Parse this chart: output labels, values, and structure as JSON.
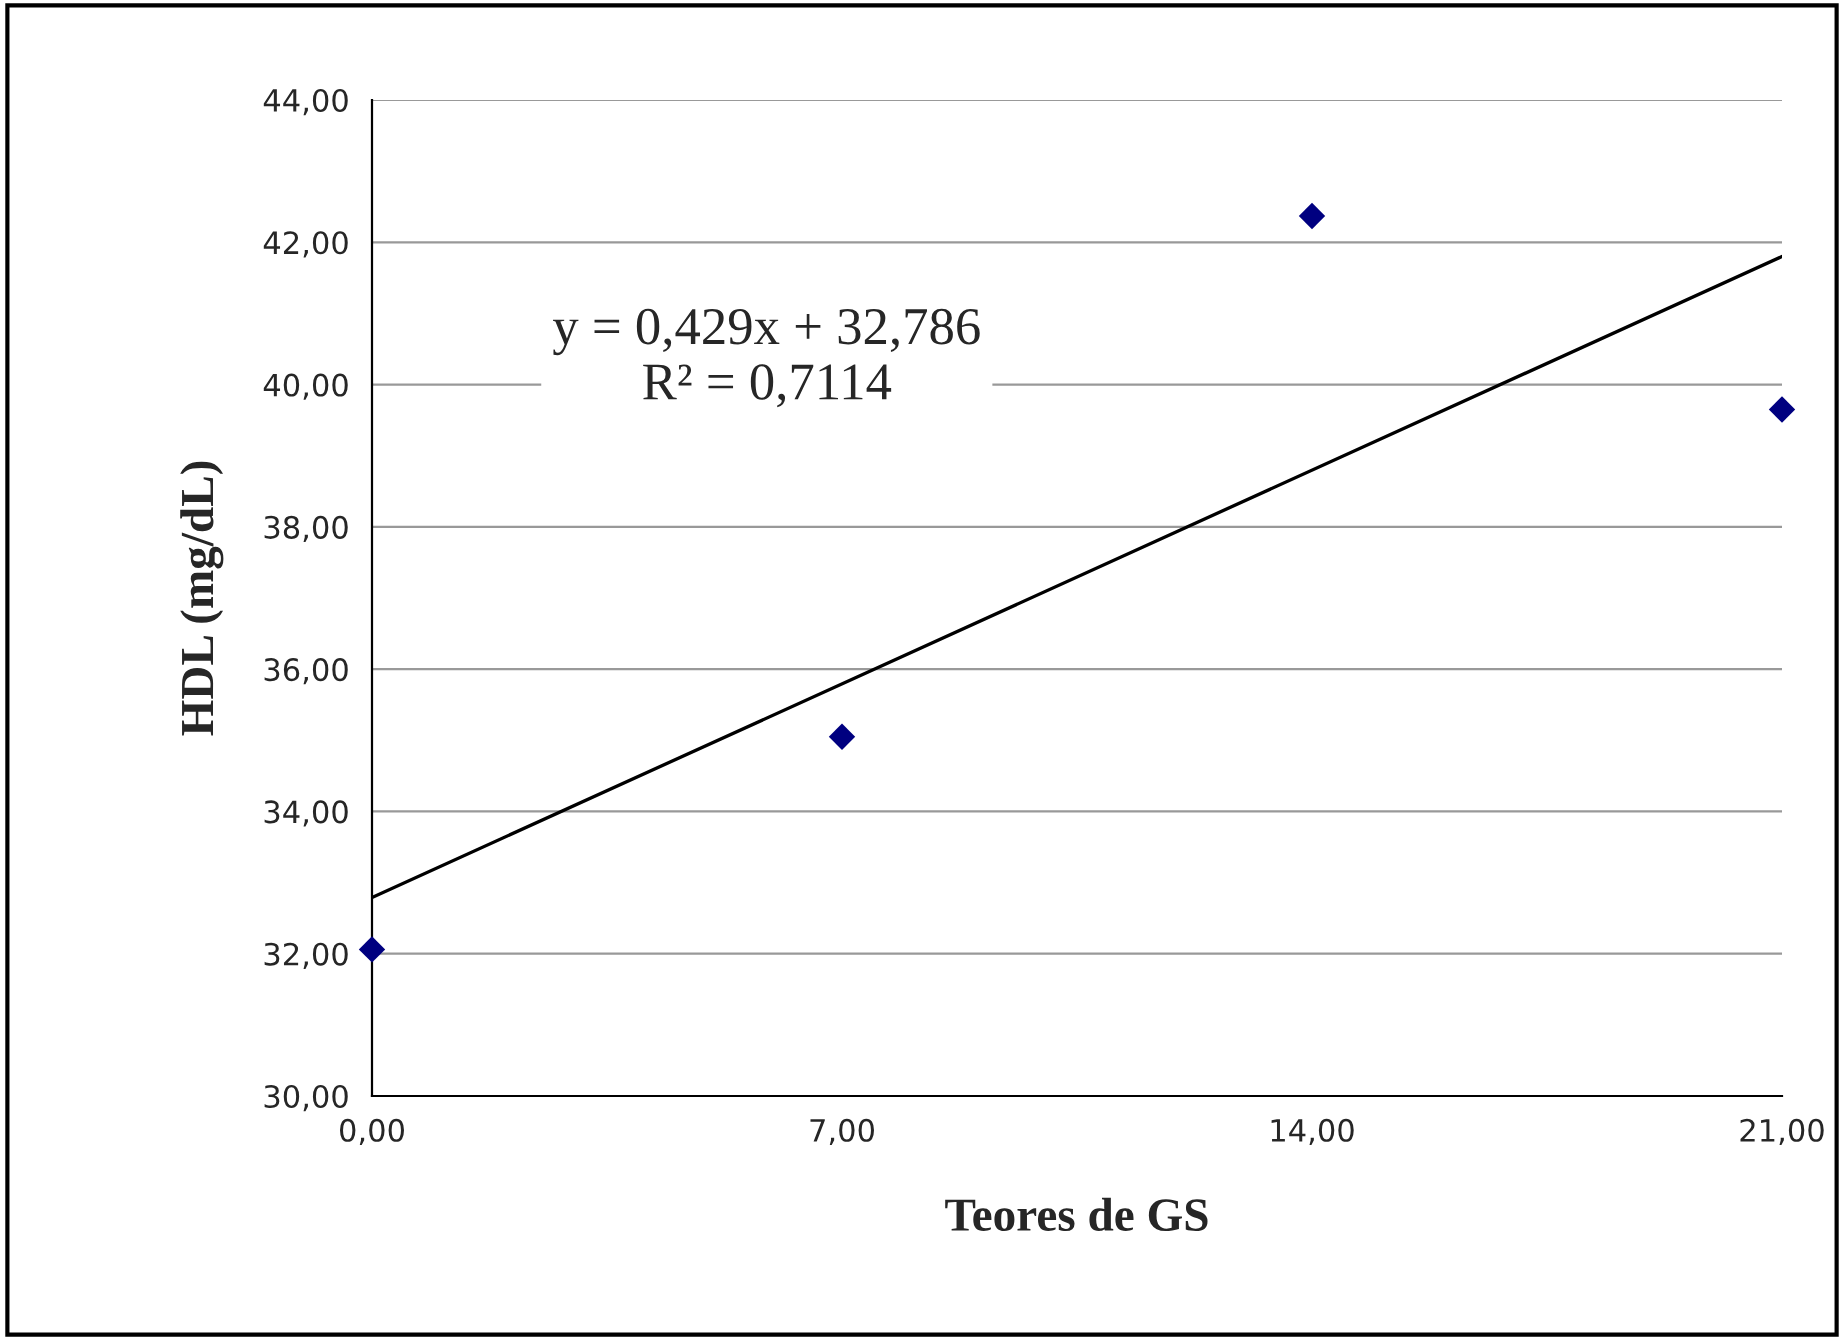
{
  "chart_data": {
    "type": "scatter",
    "xlabel": "Teores de GS",
    "ylabel": "HDL (mg/dL)",
    "series": [
      {
        "color": "#000080",
        "marker": "diamond",
        "x": [
          0,
          7,
          14,
          21
        ],
        "values": [
          32.06,
          35.05,
          42.37,
          39.65
        ]
      },
      {
        "type": "line",
        "color": "#000000",
        "marker": "none",
        "line_style": "solid",
        "x": [
          0,
          21
        ],
        "values": [
          32.79,
          41.8
        ]
      }
    ],
    "annotations": [
      "y = 0,429x + 32,786\nR² = 0,7114"
    ],
    "xlim": [
      0,
      21
    ],
    "xticks": [
      {
        "value": 0,
        "label": "0,00"
      },
      {
        "value": 7,
        "label": "7,00"
      },
      {
        "value": 14,
        "label": "14,00"
      },
      {
        "value": 21,
        "label": "21,00"
      }
    ],
    "ylim": [
      30,
      44
    ],
    "yticks": [
      {
        "value": 30,
        "label": "30,00"
      },
      {
        "value": 32,
        "label": "32,00"
      },
      {
        "value": 34,
        "label": "34,00"
      },
      {
        "value": 36,
        "label": "36,00"
      },
      {
        "value": 38,
        "label": "38,00"
      },
      {
        "value": 40,
        "label": "40,00"
      },
      {
        "value": 42,
        "label": "42,00"
      },
      {
        "value": 44,
        "label": "44,00"
      }
    ],
    "grid": "y",
    "legend": false
  }
}
